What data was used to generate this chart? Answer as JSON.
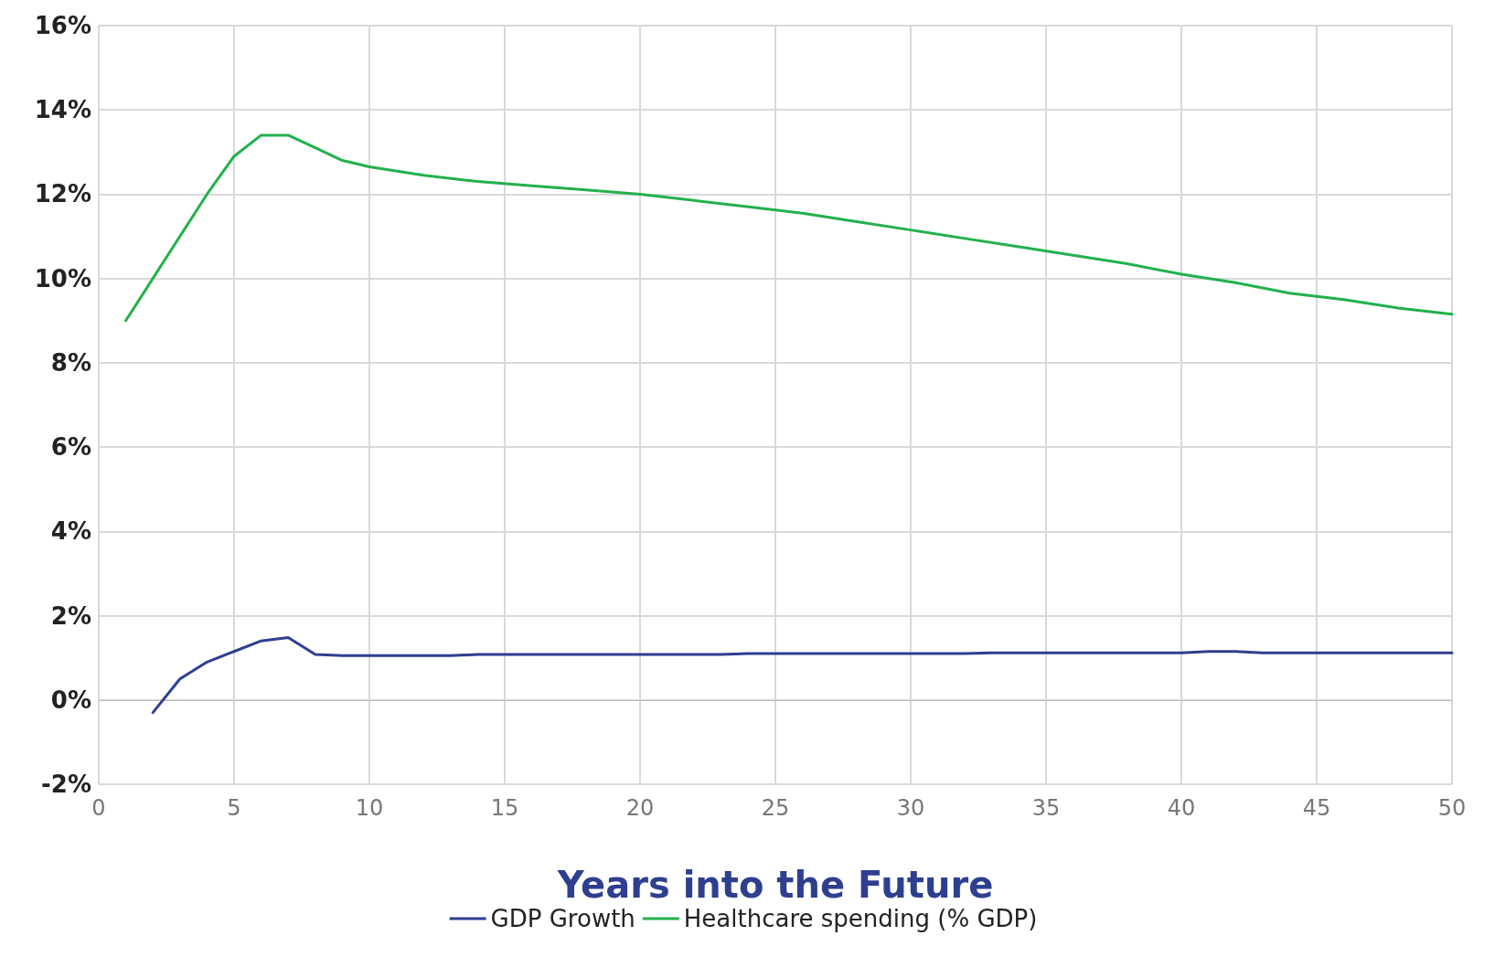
{
  "chart_data": {
    "type": "line",
    "xlabel": "Years into the Future",
    "xlim": [
      0,
      50
    ],
    "xticks": [
      0,
      5,
      10,
      15,
      20,
      25,
      30,
      35,
      40,
      45,
      50
    ],
    "ylim": [
      -2,
      16
    ],
    "yticks": [
      {
        "value": -2,
        "label": "-2%"
      },
      {
        "value": 0,
        "label": "0%"
      },
      {
        "value": 2,
        "label": "2%"
      },
      {
        "value": 4,
        "label": "4%"
      },
      {
        "value": 6,
        "label": "6%"
      },
      {
        "value": 8,
        "label": "8%"
      },
      {
        "value": 10,
        "label": "10%"
      },
      {
        "value": 12,
        "label": "12%"
      },
      {
        "value": 14,
        "label": "14%"
      },
      {
        "value": 16,
        "label": "16%"
      }
    ],
    "grid": true,
    "legend": "bottom",
    "marker": "none",
    "line_style": "solid",
    "series": [
      {
        "name": "GDP Growth",
        "color": "#2e3f8f",
        "x": [
          2,
          3,
          4,
          5,
          6,
          7,
          8,
          9,
          13,
          14,
          23,
          24,
          32,
          33,
          40,
          41,
          42,
          43,
          50
        ],
        "values": [
          -0.3,
          0.5,
          0.9,
          1.15,
          1.4,
          1.48,
          1.08,
          1.05,
          1.05,
          1.08,
          1.08,
          1.1,
          1.1,
          1.12,
          1.12,
          1.15,
          1.15,
          1.12,
          1.12
        ]
      },
      {
        "name": "Healthcare spending (% GDP)",
        "color": "#22b14c",
        "x": [
          1,
          2,
          3,
          4,
          5,
          6,
          7,
          8,
          9,
          10,
          12,
          14,
          16,
          18,
          20,
          22,
          24,
          26,
          28,
          30,
          32,
          34,
          36,
          38,
          40,
          42,
          44,
          46,
          48,
          50
        ],
        "values": [
          9.0,
          10.0,
          11.0,
          12.0,
          12.9,
          13.4,
          13.4,
          13.1,
          12.8,
          12.65,
          12.45,
          12.3,
          12.2,
          12.1,
          12.0,
          11.85,
          11.7,
          11.55,
          11.35,
          11.15,
          10.95,
          10.75,
          10.55,
          10.35,
          10.1,
          9.9,
          9.65,
          9.5,
          9.3,
          9.15
        ]
      }
    ]
  }
}
